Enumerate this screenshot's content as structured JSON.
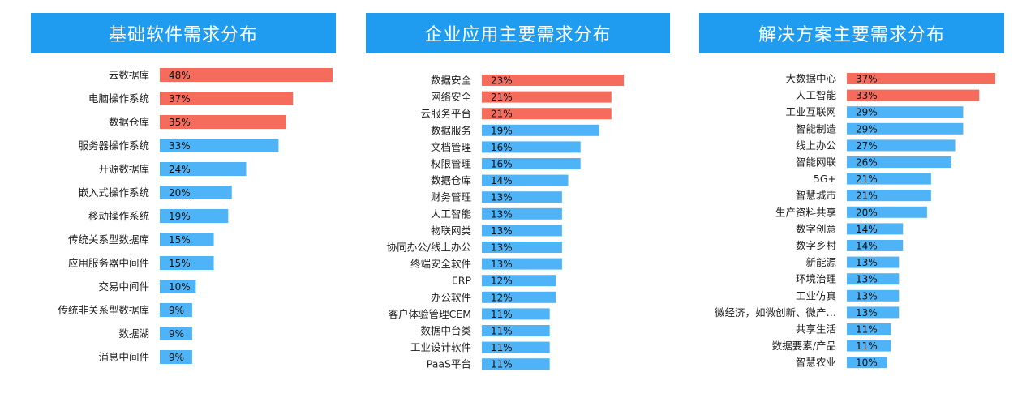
{
  "colors": {
    "header": "#1f9bf0",
    "highlight": "#f56b5c",
    "normal": "#4fb4f7"
  },
  "chart_data": [
    {
      "type": "bar",
      "orientation": "horizontal",
      "title": "基础软件需求分布",
      "categories": [
        "云数据库",
        "电脑操作系统",
        "数据仓库",
        "服务器操作系统",
        "开源数据库",
        "嵌入式操作系统",
        "移动操作系统",
        "传统关系型数据库",
        "应用服务器中间件",
        "交易中间件",
        "传统非关系型数据库",
        "数据湖",
        "消息中间件"
      ],
      "values": [
        48,
        37,
        35,
        33,
        24,
        20,
        19,
        15,
        15,
        10,
        9,
        9,
        9
      ],
      "value_labels": [
        "48%",
        "37%",
        "35%",
        "33%",
        "24%",
        "20%",
        "19%",
        "15%",
        "15%",
        "10%",
        "9%",
        "9%",
        "9%"
      ],
      "highlighted_count": 3,
      "unit": "%"
    },
    {
      "type": "bar",
      "orientation": "horizontal",
      "title": "企业应用主要需求分布",
      "categories": [
        "数据安全",
        "网络安全",
        "云服务平台",
        "数据服务",
        "文档管理",
        "权限管理",
        "数据仓库",
        "财务管理",
        "人工智能",
        "物联网类",
        "协同办公/线上办公",
        "终端安全软件",
        "ERP",
        "办公软件",
        "客户体验管理CEM",
        "数据中台类",
        "工业设计软件",
        "PaaS平台"
      ],
      "values": [
        23,
        21,
        21,
        19,
        16,
        16,
        14,
        13,
        13,
        13,
        13,
        13,
        12,
        12,
        11,
        11,
        11,
        11
      ],
      "value_labels": [
        "23%",
        "21%",
        "21%",
        "19%",
        "16%",
        "16%",
        "14%",
        "13%",
        "13%",
        "13%",
        "13%",
        "13%",
        "12%",
        "12%",
        "11%",
        "11%",
        "11%",
        "11%"
      ],
      "highlighted_count": 3,
      "unit": "%"
    },
    {
      "type": "bar",
      "orientation": "horizontal",
      "title": "解决方案主要需求分布",
      "categories": [
        "大数据中心",
        "人工智能",
        "工业互联网",
        "智能制造",
        "线上办公",
        "智能网联",
        "5G+",
        "智慧城市",
        "生产资料共享",
        "数字创意",
        "数字乡村",
        "新能源",
        "环境治理",
        "工业仿真",
        "微经济，如微创新、微产…",
        "共享生活",
        "数据要素/产品",
        "智慧农业"
      ],
      "values": [
        37,
        33,
        29,
        29,
        27,
        26,
        21,
        21,
        20,
        14,
        14,
        13,
        13,
        13,
        13,
        11,
        11,
        10
      ],
      "value_labels": [
        "37%",
        "33%",
        "29%",
        "29%",
        "27%",
        "26%",
        "21%",
        "21%",
        "20%",
        "14%",
        "14%",
        "13%",
        "13%",
        "13%",
        "13%",
        "11%",
        "11%",
        "10%"
      ],
      "highlighted_count": 2,
      "unit": "%"
    }
  ]
}
